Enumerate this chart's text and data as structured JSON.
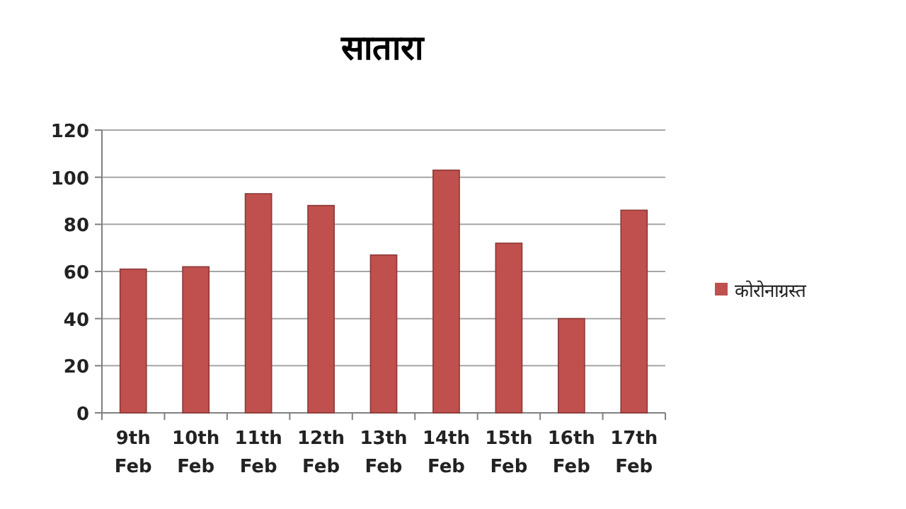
{
  "chart_data": {
    "type": "bar",
    "title": "सातारा",
    "categories": [
      "9th Feb",
      "10th Feb",
      "11th Feb",
      "12th Feb",
      "13th Feb",
      "14th Feb",
      "15th Feb",
      "16th Feb",
      "17th Feb"
    ],
    "series": [
      {
        "name": "कोरोनाग्रस्त",
        "color": "#c0504d",
        "values": [
          61,
          62,
          93,
          88,
          67,
          103,
          72,
          40,
          86
        ]
      }
    ],
    "ylim": [
      0,
      120
    ],
    "yticks": [
      0,
      20,
      40,
      60,
      80,
      100,
      120
    ],
    "grid": "y",
    "legend": "right"
  }
}
